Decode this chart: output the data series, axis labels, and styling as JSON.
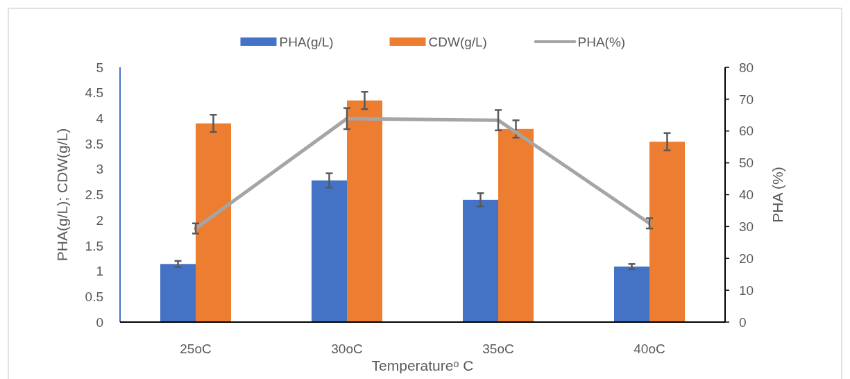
{
  "chart_data": {
    "type": "bar",
    "xlabel": "Temperatureᵒ C",
    "ylabel": "PHA(g/L); CDW(g/L)",
    "y2label": "PHA (%)",
    "categories": [
      "25oC",
      "30oC",
      "35oC",
      "40oC"
    ],
    "series": [
      {
        "name": "PHA(g/L)",
        "color": "#4472c4",
        "values": [
          1.14,
          2.78,
          2.4,
          1.09
        ],
        "errors": [
          0.06,
          0.14,
          0.13,
          0.05
        ]
      },
      {
        "name": "CDW(g/L)",
        "color": "#ed7d31",
        "values": [
          3.9,
          4.35,
          3.79,
          3.54
        ],
        "errors": [
          0.17,
          0.17,
          0.17,
          0.17
        ]
      },
      {
        "name": "PHA(%)",
        "type": "line",
        "axis": "y2",
        "color": "#a5a5a5",
        "values": [
          29.4,
          63.9,
          63.4,
          31.0
        ],
        "errors": [
          1.6,
          3.3,
          3.2,
          1.6
        ]
      }
    ],
    "ylim": [
      0,
      5
    ],
    "yticks": [
      0,
      0.5,
      1,
      1.5,
      2,
      2.5,
      3,
      3.5,
      4,
      4.5,
      5
    ],
    "y2lim": [
      0,
      80
    ],
    "y2ticks": [
      0,
      10,
      20,
      30,
      40,
      50,
      60,
      70,
      80
    ],
    "legend": "top",
    "grid": false,
    "marker": "none"
  }
}
